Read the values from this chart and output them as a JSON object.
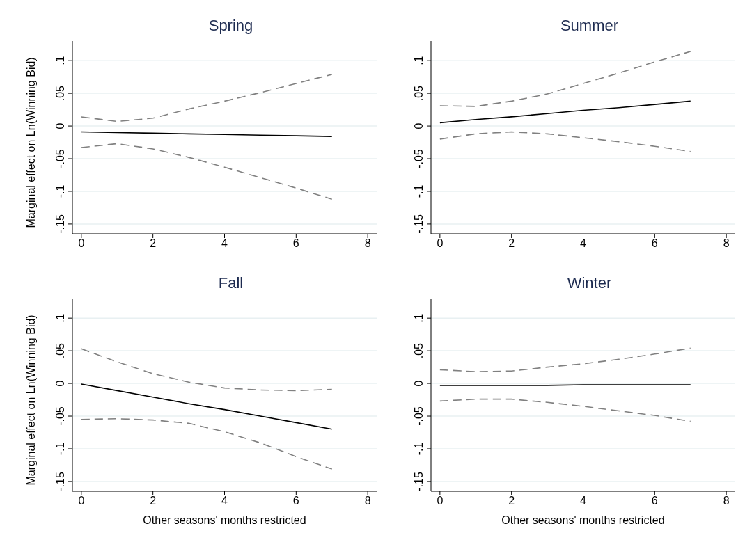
{
  "chart_data": [
    {
      "type": "line",
      "title": "Spring",
      "ylabel": "Marginal effect on Ln(Winning Bid)",
      "x": [
        0,
        1,
        2,
        3,
        4,
        5,
        6,
        7
      ],
      "xlim": [
        -0.25,
        8.25
      ],
      "xticks": [
        0,
        2,
        4,
        6,
        8
      ],
      "ylim": [
        -0.165,
        0.13
      ],
      "yticks": [
        {
          "value": -0.15,
          "label": "-.15"
        },
        {
          "value": -0.1,
          "label": "-.1"
        },
        {
          "value": -0.05,
          "label": "-.05"
        },
        {
          "value": 0,
          "label": "0"
        },
        {
          "value": 0.05,
          "label": ".05"
        },
        {
          "value": 0.1,
          "label": ".1"
        }
      ],
      "grid": "y",
      "marker": "none",
      "series": [
        {
          "color": "#000000",
          "line_style": "solid",
          "values": [
            -0.009,
            -0.01,
            -0.011,
            -0.012,
            -0.013,
            -0.014,
            -0.015,
            -0.016
          ]
        },
        {
          "color": "#808080",
          "line_style": "dashed",
          "values": [
            0.014,
            0.007,
            0.012,
            0.026,
            0.038,
            0.051,
            0.065,
            0.079
          ]
        },
        {
          "color": "#808080",
          "line_style": "dashed",
          "values": [
            -0.033,
            -0.027,
            -0.035,
            -0.048,
            -0.063,
            -0.079,
            -0.095,
            -0.112
          ]
        }
      ]
    },
    {
      "type": "line",
      "title": "Summer",
      "x": [
        0,
        1,
        2,
        3,
        4,
        5,
        6,
        7
      ],
      "xlim": [
        -0.25,
        8.25
      ],
      "xticks": [
        0,
        2,
        4,
        6,
        8
      ],
      "ylim": [
        -0.165,
        0.13
      ],
      "yticks": [
        {
          "value": -0.15,
          "label": "-.15"
        },
        {
          "value": -0.1,
          "label": "-.1"
        },
        {
          "value": -0.05,
          "label": "-.05"
        },
        {
          "value": 0,
          "label": "0"
        },
        {
          "value": 0.05,
          "label": ".05"
        },
        {
          "value": 0.1,
          "label": ".1"
        }
      ],
      "grid": "y",
      "marker": "none",
      "series": [
        {
          "color": "#000000",
          "line_style": "solid",
          "values": [
            0.005,
            0.01,
            0.014,
            0.019,
            0.024,
            0.028,
            0.033,
            0.038
          ]
        },
        {
          "color": "#808080",
          "line_style": "dashed",
          "values": [
            0.031,
            0.03,
            0.038,
            0.049,
            0.065,
            0.081,
            0.098,
            0.114
          ]
        },
        {
          "color": "#808080",
          "line_style": "dashed",
          "values": [
            -0.02,
            -0.012,
            -0.009,
            -0.012,
            -0.018,
            -0.024,
            -0.031,
            -0.039
          ]
        }
      ]
    },
    {
      "type": "line",
      "title": "Fall",
      "ylabel": "Marginal effect on Ln(Winning Bid)",
      "xlabel": "Other seasons' months restricted",
      "x": [
        0,
        1,
        2,
        3,
        4,
        5,
        6,
        7
      ],
      "xlim": [
        -0.25,
        8.25
      ],
      "xticks": [
        0,
        2,
        4,
        6,
        8
      ],
      "ylim": [
        -0.165,
        0.13
      ],
      "yticks": [
        {
          "value": -0.15,
          "label": "-.15"
        },
        {
          "value": -0.1,
          "label": "-.1"
        },
        {
          "value": -0.05,
          "label": "-.05"
        },
        {
          "value": 0,
          "label": "0"
        },
        {
          "value": 0.05,
          "label": ".05"
        },
        {
          "value": 0.1,
          "label": ".1"
        }
      ],
      "grid": "y",
      "marker": "none",
      "series": [
        {
          "color": "#000000",
          "line_style": "solid",
          "values": [
            -0.001,
            -0.011,
            -0.021,
            -0.031,
            -0.04,
            -0.05,
            -0.06,
            -0.07
          ]
        },
        {
          "color": "#808080",
          "line_style": "dashed",
          "values": [
            0.053,
            0.033,
            0.015,
            0.002,
            -0.007,
            -0.01,
            -0.011,
            -0.009
          ]
        },
        {
          "color": "#808080",
          "line_style": "dashed",
          "values": [
            -0.055,
            -0.054,
            -0.056,
            -0.061,
            -0.074,
            -0.091,
            -0.112,
            -0.131
          ]
        }
      ]
    },
    {
      "type": "line",
      "title": "Winter",
      "xlabel": "Other seasons' months restricted",
      "x": [
        0,
        1,
        2,
        3,
        4,
        5,
        6,
        7
      ],
      "xlim": [
        -0.25,
        8.25
      ],
      "xticks": [
        0,
        2,
        4,
        6,
        8
      ],
      "ylim": [
        -0.165,
        0.13
      ],
      "yticks": [
        {
          "value": -0.15,
          "label": "-.15"
        },
        {
          "value": -0.1,
          "label": "-.1"
        },
        {
          "value": -0.05,
          "label": "-.05"
        },
        {
          "value": 0,
          "label": "0"
        },
        {
          "value": 0.05,
          "label": ".05"
        },
        {
          "value": 0.1,
          "label": ".1"
        }
      ],
      "grid": "y",
      "marker": "none",
      "series": [
        {
          "color": "#000000",
          "line_style": "solid",
          "values": [
            -0.003,
            -0.003,
            -0.003,
            -0.003,
            -0.002,
            -0.002,
            -0.002,
            -0.002
          ]
        },
        {
          "color": "#808080",
          "line_style": "dashed",
          "values": [
            0.021,
            0.018,
            0.019,
            0.025,
            0.03,
            0.037,
            0.045,
            0.054
          ]
        },
        {
          "color": "#808080",
          "line_style": "dashed",
          "values": [
            -0.027,
            -0.024,
            -0.024,
            -0.029,
            -0.035,
            -0.042,
            -0.049,
            -0.058
          ]
        }
      ]
    }
  ]
}
